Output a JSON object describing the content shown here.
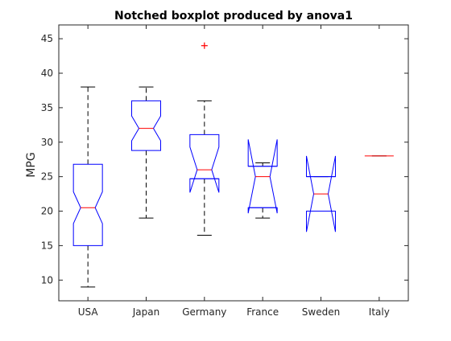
{
  "chart_data": {
    "type": "boxplot",
    "title": "Notched boxplot produced by anova1",
    "xlabel": "",
    "ylabel": "MPG",
    "ylim": [
      7,
      47
    ],
    "yticks": [
      10,
      15,
      20,
      25,
      30,
      35,
      40,
      45
    ],
    "grid": false,
    "categories": [
      "USA",
      "Japan",
      "Germany",
      "France",
      "Sweden",
      "Italy"
    ],
    "boxes": [
      {
        "q1": 15.0,
        "median": 20.5,
        "q3": 26.8,
        "whisker_low": 9.0,
        "whisker_high": 38.0,
        "notch_low": 18.2,
        "notch_high": 22.8,
        "outliers": []
      },
      {
        "q1": 28.8,
        "median": 32.0,
        "q3": 36.0,
        "whisker_low": 19.0,
        "whisker_high": 38.0,
        "notch_low": 30.2,
        "notch_high": 33.8,
        "outliers": []
      },
      {
        "q1": 24.7,
        "median": 26.0,
        "q3": 31.1,
        "whisker_low": 16.5,
        "whisker_high": 36.0,
        "notch_low": 22.7,
        "notch_high": 29.3,
        "outliers": [
          44.0
        ]
      },
      {
        "q1": 20.5,
        "median": 25.0,
        "q3": 26.5,
        "whisker_low": 19.0,
        "whisker_high": 27.0,
        "notch_low": 19.7,
        "notch_high": 30.4,
        "outliers": []
      },
      {
        "q1": 20.0,
        "median": 22.5,
        "q3": 25.0,
        "whisker_low": 20.0,
        "whisker_high": 25.0,
        "notch_low": 17.0,
        "notch_high": 28.0,
        "outliers": []
      },
      {
        "q1": 28.0,
        "median": 28.0,
        "q3": 28.0,
        "whisker_low": 28.0,
        "whisker_high": 28.0,
        "notch_low": 28.0,
        "notch_high": 28.0,
        "outliers": []
      }
    ],
    "colors": {
      "box": "#0000ff",
      "median": "#ff0000",
      "whisker": "#000000",
      "outlier": "#ff0000",
      "axes": "#262626"
    }
  }
}
